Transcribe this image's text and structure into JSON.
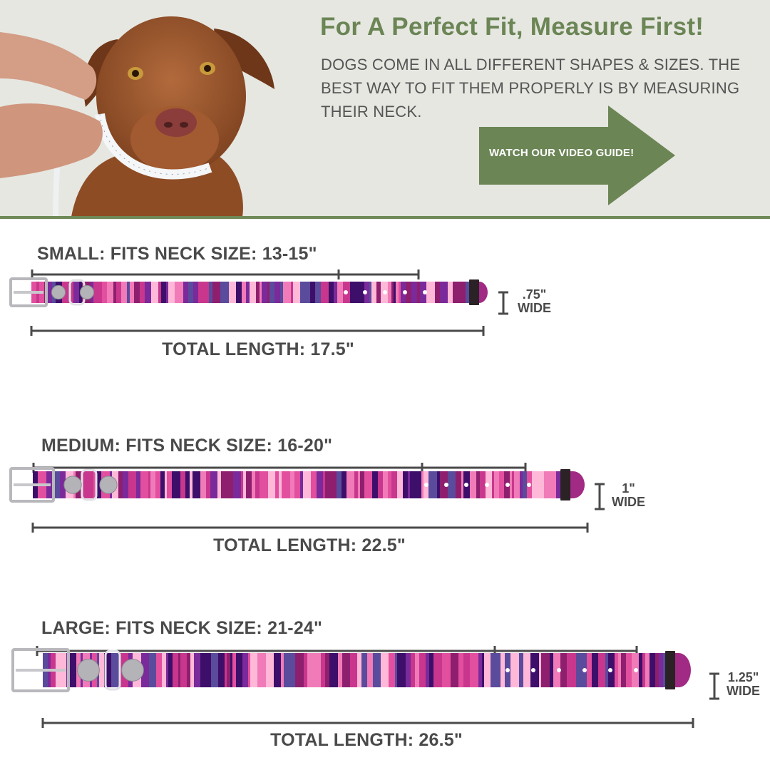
{
  "hero": {
    "title": "For A Perfect Fit, Measure First!",
    "text": "DOGS COME IN ALL DIFFERENT SHAPES & SIZES. THE BEST WAY TO FIT THEM PROPERLY IS BY MEASURING THEIR NECK.",
    "cta_label": "WATCH OUR VIDEO GUIDE!",
    "accent_color": "#6b8555"
  },
  "sizes": [
    {
      "key": "small",
      "title": "SMALL:  FITS NECK SIZE: 13-15\"",
      "total_label": "TOTAL LENGTH: 17.5\"",
      "width_value": ".75\"",
      "width_word": "WIDE"
    },
    {
      "key": "medium",
      "title": "MEDIUM:  FITS NECK SIZE: 16-20\"",
      "total_label": "TOTAL LENGTH: 22.5\"",
      "width_value": "1\"",
      "width_word": "WIDE"
    },
    {
      "key": "large",
      "title": "LARGE:  FITS NECK SIZE: 21-24\"",
      "total_label": "TOTAL LENGTH: 26.5\"",
      "width_value": "1.25\"",
      "width_word": "WIDE"
    }
  ],
  "collar_colors": [
    "#3d0f6b",
    "#c8378d",
    "#f07bb8",
    "#7a2a9a",
    "#e34f9f",
    "#ffb8d8",
    "#5a4b9c",
    "#8e1f6f"
  ]
}
